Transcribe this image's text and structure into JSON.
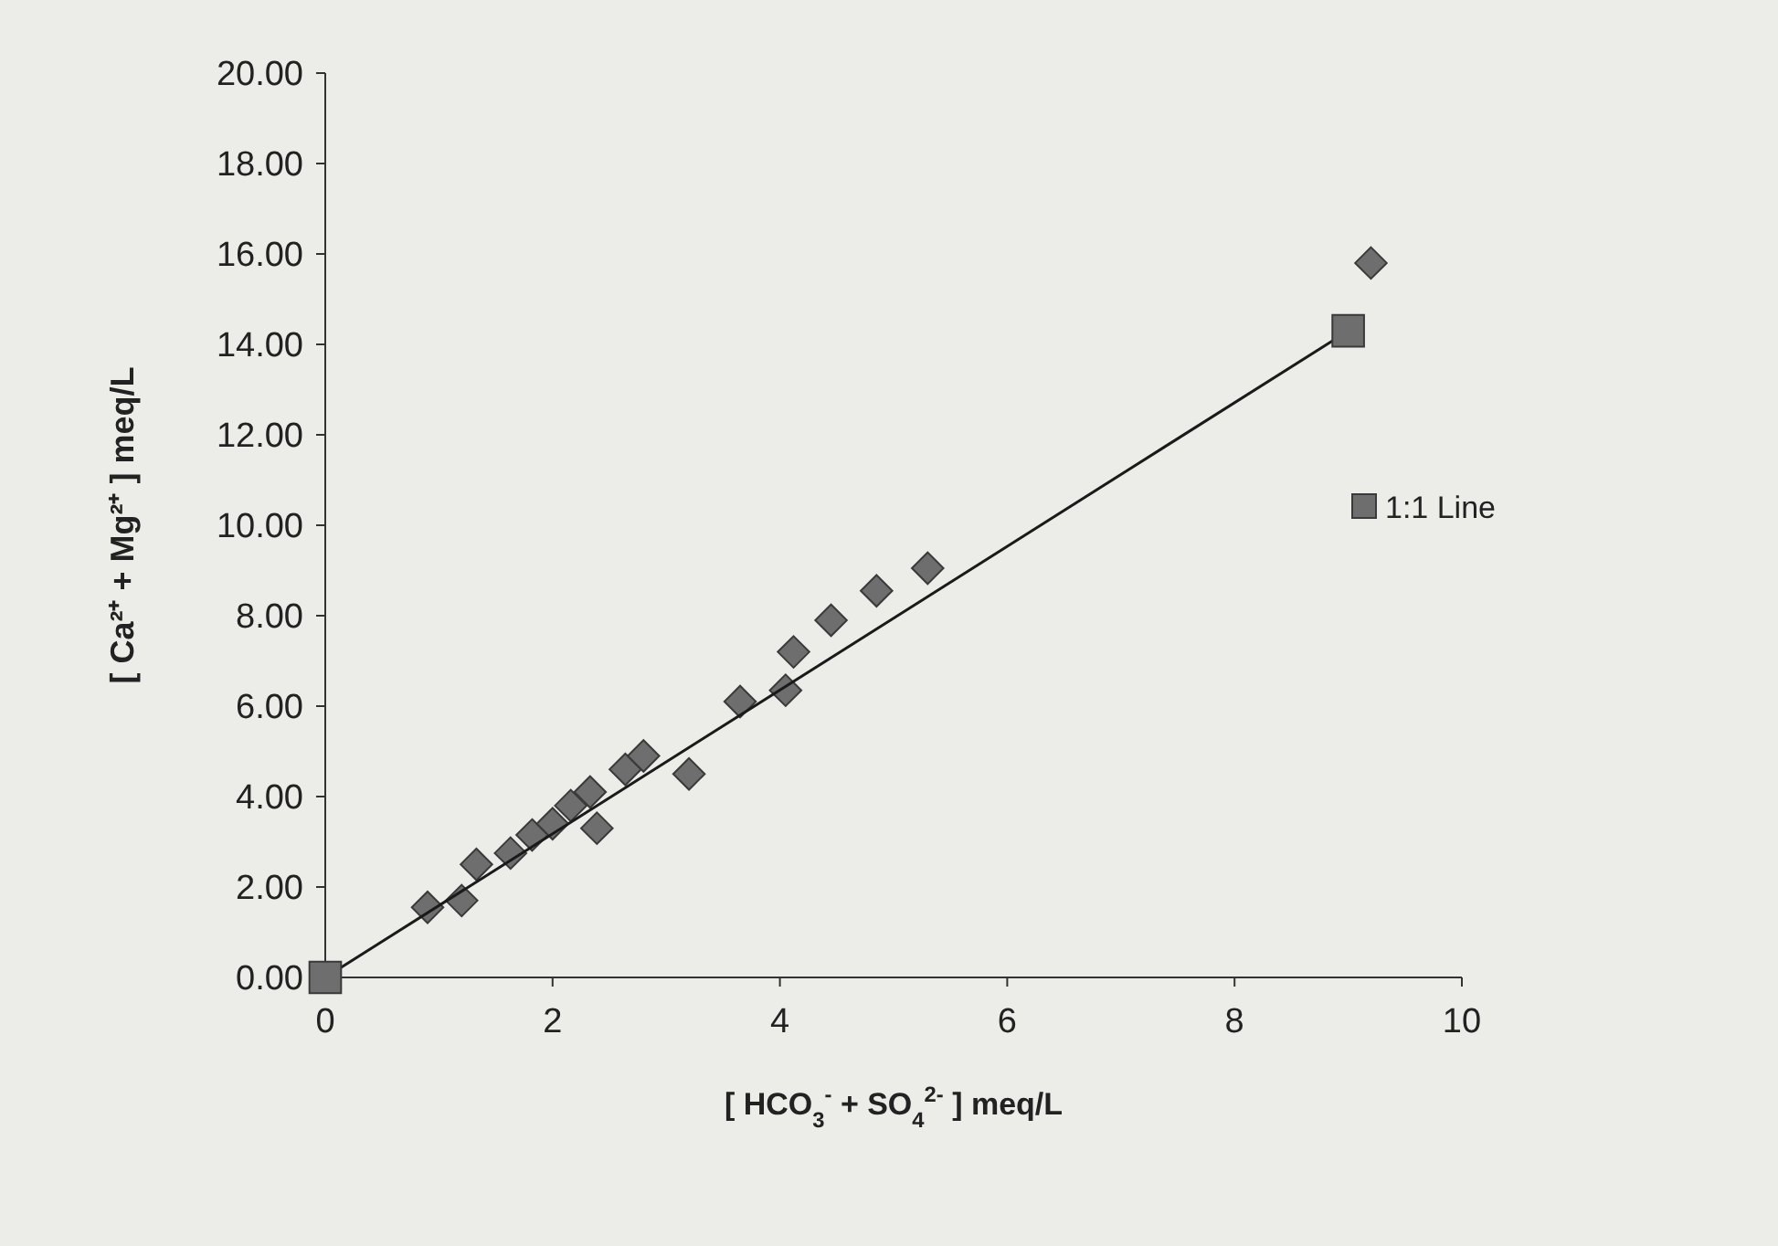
{
  "chart_data": {
    "type": "scatter",
    "xlabel": "[ HCO$_{3}$$^{-}$ + SO$_{4}$$^{2-}$ ] meq/L",
    "ylabel": "[ Ca²⁺ + Mg²⁺ ] meq/L",
    "xlim": [
      0,
      10
    ],
    "xticks": [
      0,
      2,
      4,
      6,
      8,
      10
    ],
    "ylim": [
      0,
      20
    ],
    "yticks": [
      {
        "value": 0,
        "label": "0.00"
      },
      {
        "value": 2,
        "label": "2.00"
      },
      {
        "value": 4,
        "label": "4.00"
      },
      {
        "value": 6,
        "label": "6.00"
      },
      {
        "value": 8,
        "label": "8.00"
      },
      {
        "value": 10,
        "label": "10.00"
      },
      {
        "value": 12,
        "label": "12.00"
      },
      {
        "value": 14,
        "label": "14.00"
      },
      {
        "value": 16,
        "label": "16.00"
      },
      {
        "value": 18,
        "label": "18.00"
      },
      {
        "value": 20,
        "label": "20.00"
      }
    ],
    "grid": false,
    "legend": "right",
    "series": [
      {
        "marker": "diamond",
        "color": "#6e6e6e",
        "x": [
          0.9,
          1.2,
          1.33,
          1.63,
          1.82,
          2.0,
          2.16,
          2.33,
          2.39,
          2.64,
          2.8,
          3.2,
          3.65,
          4.05,
          4.12,
          4.45,
          4.85,
          5.3,
          9.2
        ],
        "values": [
          1.55,
          1.7,
          2.5,
          2.75,
          3.15,
          3.4,
          3.8,
          4.1,
          3.3,
          4.6,
          4.9,
          4.5,
          6.1,
          6.35,
          7.2,
          7.9,
          8.55,
          9.05,
          15.8
        ]
      },
      {
        "type": "line",
        "marker": "square",
        "name": "1:1 Line",
        "color": "#6e6e6e",
        "x": [
          0,
          9.0
        ],
        "values": [
          0,
          14.3
        ]
      }
    ]
  }
}
